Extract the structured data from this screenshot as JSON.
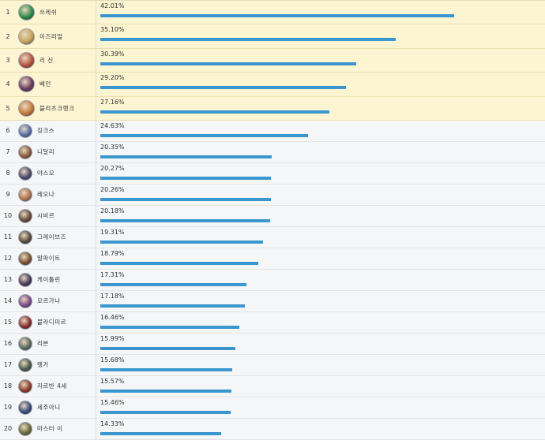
{
  "table": {
    "bar_color": "#3b96d0",
    "rows": [
      {
        "rank": "1",
        "name": "쓰레쉬",
        "pct": "42.01%",
        "value": 42.01,
        "highlight": true,
        "avatar_color": "#2e8a4a"
      },
      {
        "rank": "2",
        "name": "이즈리얼",
        "pct": "35.10%",
        "value": 35.1,
        "highlight": true,
        "avatar_color": "#c9a35a"
      },
      {
        "rank": "3",
        "name": "리 신",
        "pct": "30.39%",
        "value": 30.39,
        "highlight": true,
        "avatar_color": "#b8533e"
      },
      {
        "rank": "4",
        "name": "베인",
        "pct": "29.20%",
        "value": 29.2,
        "highlight": true,
        "avatar_color": "#6a3a5e"
      },
      {
        "rank": "5",
        "name": "블리츠크랭크",
        "pct": "27.16%",
        "value": 27.16,
        "highlight": true,
        "avatar_color": "#c77a3a"
      },
      {
        "rank": "6",
        "name": "징크스",
        "pct": "24.63%",
        "value": 24.63,
        "highlight": false,
        "avatar_color": "#5a6fa8"
      },
      {
        "rank": "7",
        "name": "니달리",
        "pct": "20.35%",
        "value": 20.35,
        "highlight": false,
        "avatar_color": "#8a5a3a"
      },
      {
        "rank": "8",
        "name": "야스오",
        "pct": "20.27%",
        "value": 20.27,
        "highlight": false,
        "avatar_color": "#4a4a6a"
      },
      {
        "rank": "9",
        "name": "레오나",
        "pct": "20.26%",
        "value": 20.26,
        "highlight": false,
        "avatar_color": "#b0724a"
      },
      {
        "rank": "10",
        "name": "시비르",
        "pct": "20.18%",
        "value": 20.18,
        "highlight": false,
        "avatar_color": "#6a4a3a"
      },
      {
        "rank": "11",
        "name": "그레이브즈",
        "pct": "19.31%",
        "value": 19.31,
        "highlight": false,
        "avatar_color": "#5a4a3e"
      },
      {
        "rank": "12",
        "name": "말파이트",
        "pct": "18.79%",
        "value": 18.79,
        "highlight": false,
        "avatar_color": "#7a5030"
      },
      {
        "rank": "13",
        "name": "케이틀린",
        "pct": "17.31%",
        "value": 17.31,
        "highlight": false,
        "avatar_color": "#4a3a5a"
      },
      {
        "rank": "14",
        "name": "모르가나",
        "pct": "17.18%",
        "value": 17.18,
        "highlight": false,
        "avatar_color": "#7a4a8a"
      },
      {
        "rank": "15",
        "name": "블라디미르",
        "pct": "16.46%",
        "value": 16.46,
        "highlight": false,
        "avatar_color": "#8a2a2a"
      },
      {
        "rank": "16",
        "name": "리븐",
        "pct": "15.99%",
        "value": 15.99,
        "highlight": false,
        "avatar_color": "#5a6a5a"
      },
      {
        "rank": "17",
        "name": "렝가",
        "pct": "15.68%",
        "value": 15.68,
        "highlight": false,
        "avatar_color": "#4a5a4a"
      },
      {
        "rank": "18",
        "name": "자르반 4세",
        "pct": "15.57%",
        "value": 15.57,
        "highlight": false,
        "avatar_color": "#8a3a2a"
      },
      {
        "rank": "19",
        "name": "세주아니",
        "pct": "15.46%",
        "value": 15.46,
        "highlight": false,
        "avatar_color": "#3a4a7a"
      },
      {
        "rank": "20",
        "name": "마스터 이",
        "pct": "14.33%",
        "value": 14.33,
        "highlight": false,
        "avatar_color": "#6a6a3a"
      }
    ]
  }
}
